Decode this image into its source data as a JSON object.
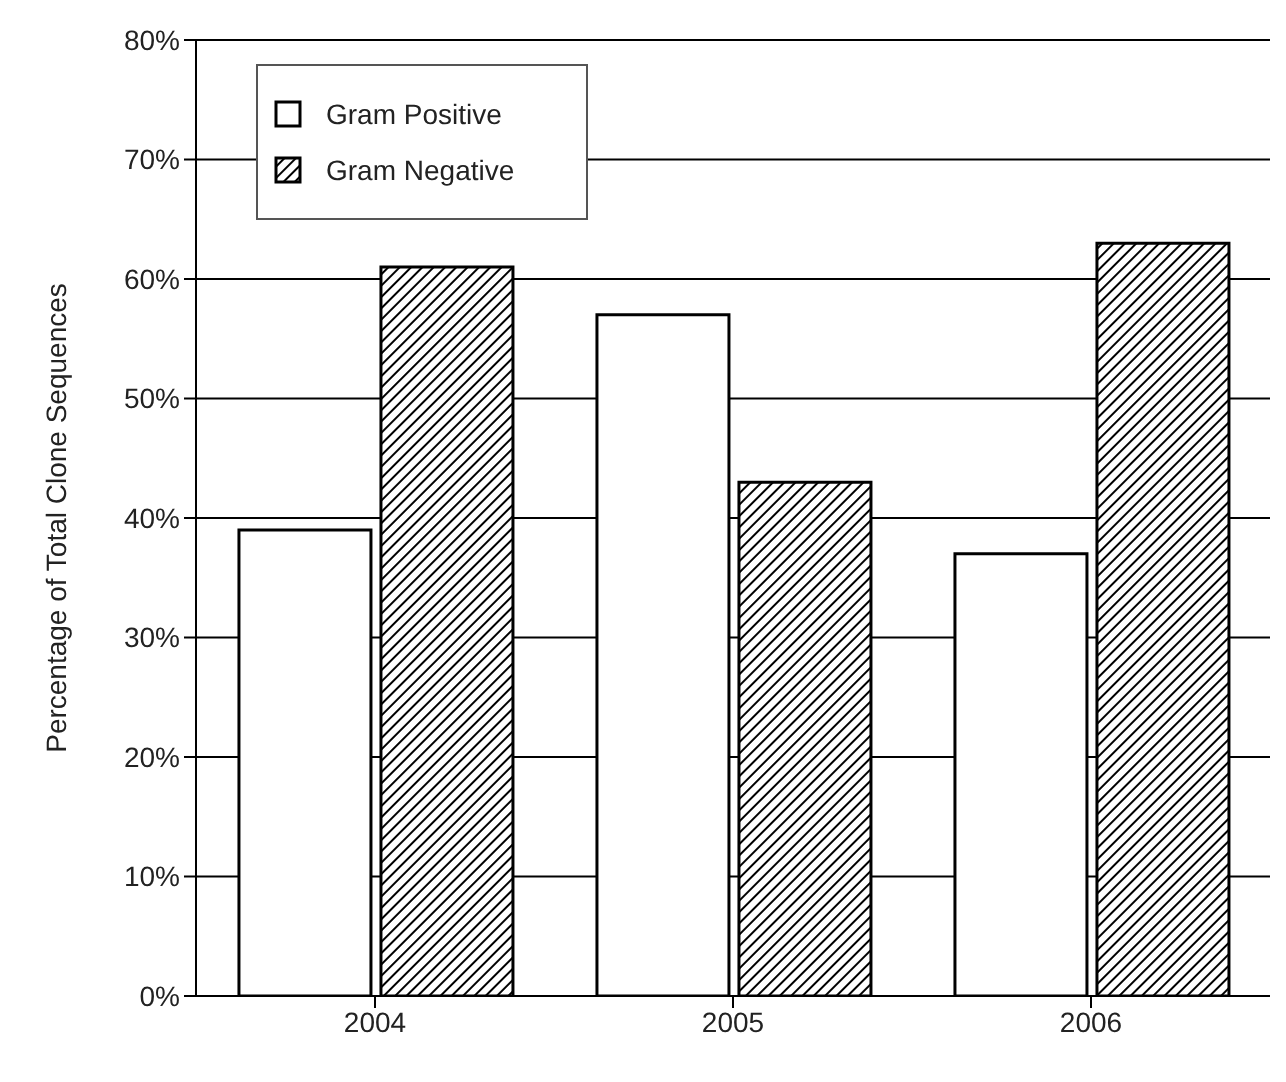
{
  "chart_data": {
    "type": "bar",
    "ylabel": "Percentage of Total Clone Sequences",
    "categories": [
      "2004",
      "2005",
      "2006"
    ],
    "series": [
      {
        "name": "Gram Positive",
        "color": "#ffffff",
        "values": [
          39,
          57,
          37
        ]
      },
      {
        "name": "Gram Negative",
        "color": "#000000",
        "values": [
          61,
          43,
          63
        ]
      }
    ],
    "ylim": [
      0,
      80
    ],
    "yticks": [
      {
        "value": 0,
        "label": "0%"
      },
      {
        "value": 10,
        "label": "10%"
      },
      {
        "value": 20,
        "label": "20%"
      },
      {
        "value": 30,
        "label": "30%"
      },
      {
        "value": 40,
        "label": "40%"
      },
      {
        "value": 50,
        "label": "50%"
      },
      {
        "value": 60,
        "label": "60%"
      },
      {
        "value": 70,
        "label": "70%"
      },
      {
        "value": 80,
        "label": "80%"
      }
    ],
    "grid": "y",
    "legend": "top left"
  }
}
